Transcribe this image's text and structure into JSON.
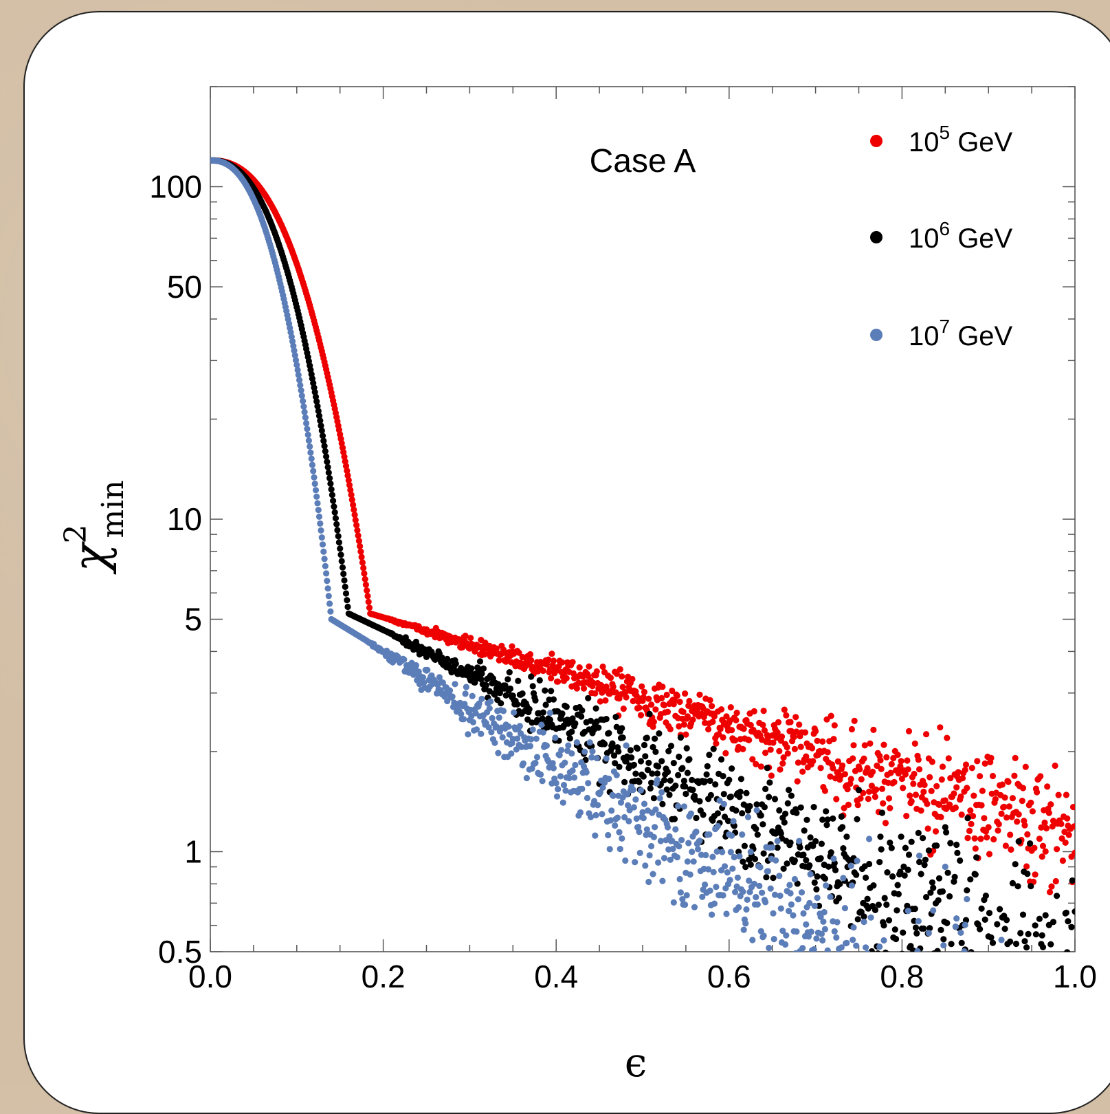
{
  "chart_data": {
    "type": "scatter",
    "title": "",
    "annotation": "Case A",
    "xlabel": "ϵ",
    "ylabel": "χ",
    "ylabel_sup": "2",
    "ylabel_sub": "min",
    "xlim": [
      0.0,
      1.0
    ],
    "ylim": [
      0.5,
      200
    ],
    "yscale": "log",
    "grid": false,
    "legend_position": "top-right",
    "x_ticks": [
      "0.0",
      "0.2",
      "0.4",
      "0.6",
      "0.8",
      "1.0"
    ],
    "y_ticks": [
      "0.5",
      "1",
      "5",
      "10",
      "50",
      "100"
    ],
    "series": [
      {
        "name": "10^5 GeV",
        "label_base": "10",
        "label_exp": "5",
        "label_unit": " GeV",
        "color": "#ee0000",
        "model": {
          "y0": 120,
          "xk": 0.185,
          "yk": 5.2,
          "slope": 0.65,
          "spread_start": 0.2,
          "spread_rate": 0.35
        },
        "x": [
          0.0,
          0.05,
          0.1,
          0.15,
          0.185,
          0.3,
          0.4,
          0.5,
          0.6,
          0.7,
          0.8,
          0.9,
          1.0
        ],
        "y": [
          120,
          100,
          45,
          12,
          5.2,
          4.4,
          3.7,
          3.0,
          2.5,
          2.0,
          1.6,
          1.3,
          1.1
        ]
      },
      {
        "name": "10^6 GeV",
        "label_base": "10",
        "label_exp": "6",
        "label_unit": " GeV",
        "color": "#000000",
        "model": {
          "y0": 120,
          "xk": 0.16,
          "yk": 5.2,
          "slope": 1.05,
          "spread_start": 0.2,
          "spread_rate": 0.6
        },
        "x": [
          0.0,
          0.05,
          0.1,
          0.16,
          0.3,
          0.4,
          0.5,
          0.6,
          0.7,
          0.8
        ],
        "y": [
          120,
          90,
          35,
          5.2,
          3.8,
          3.0,
          2.0,
          1.3,
          0.9,
          0.6
        ]
      },
      {
        "name": "10^7 GeV",
        "label_base": "10",
        "label_exp": "7",
        "label_unit": " GeV",
        "color": "#5b7db8",
        "model": {
          "y0": 120,
          "xk": 0.14,
          "yk": 5.0,
          "slope": 1.35,
          "spread_start": 0.18,
          "spread_rate": 0.75
        },
        "x": [
          0.0,
          0.05,
          0.1,
          0.14,
          0.3,
          0.4,
          0.5,
          0.6,
          0.7
        ],
        "y": [
          120,
          80,
          25,
          5.0,
          3.5,
          2.3,
          1.3,
          0.8,
          0.5
        ]
      }
    ]
  }
}
